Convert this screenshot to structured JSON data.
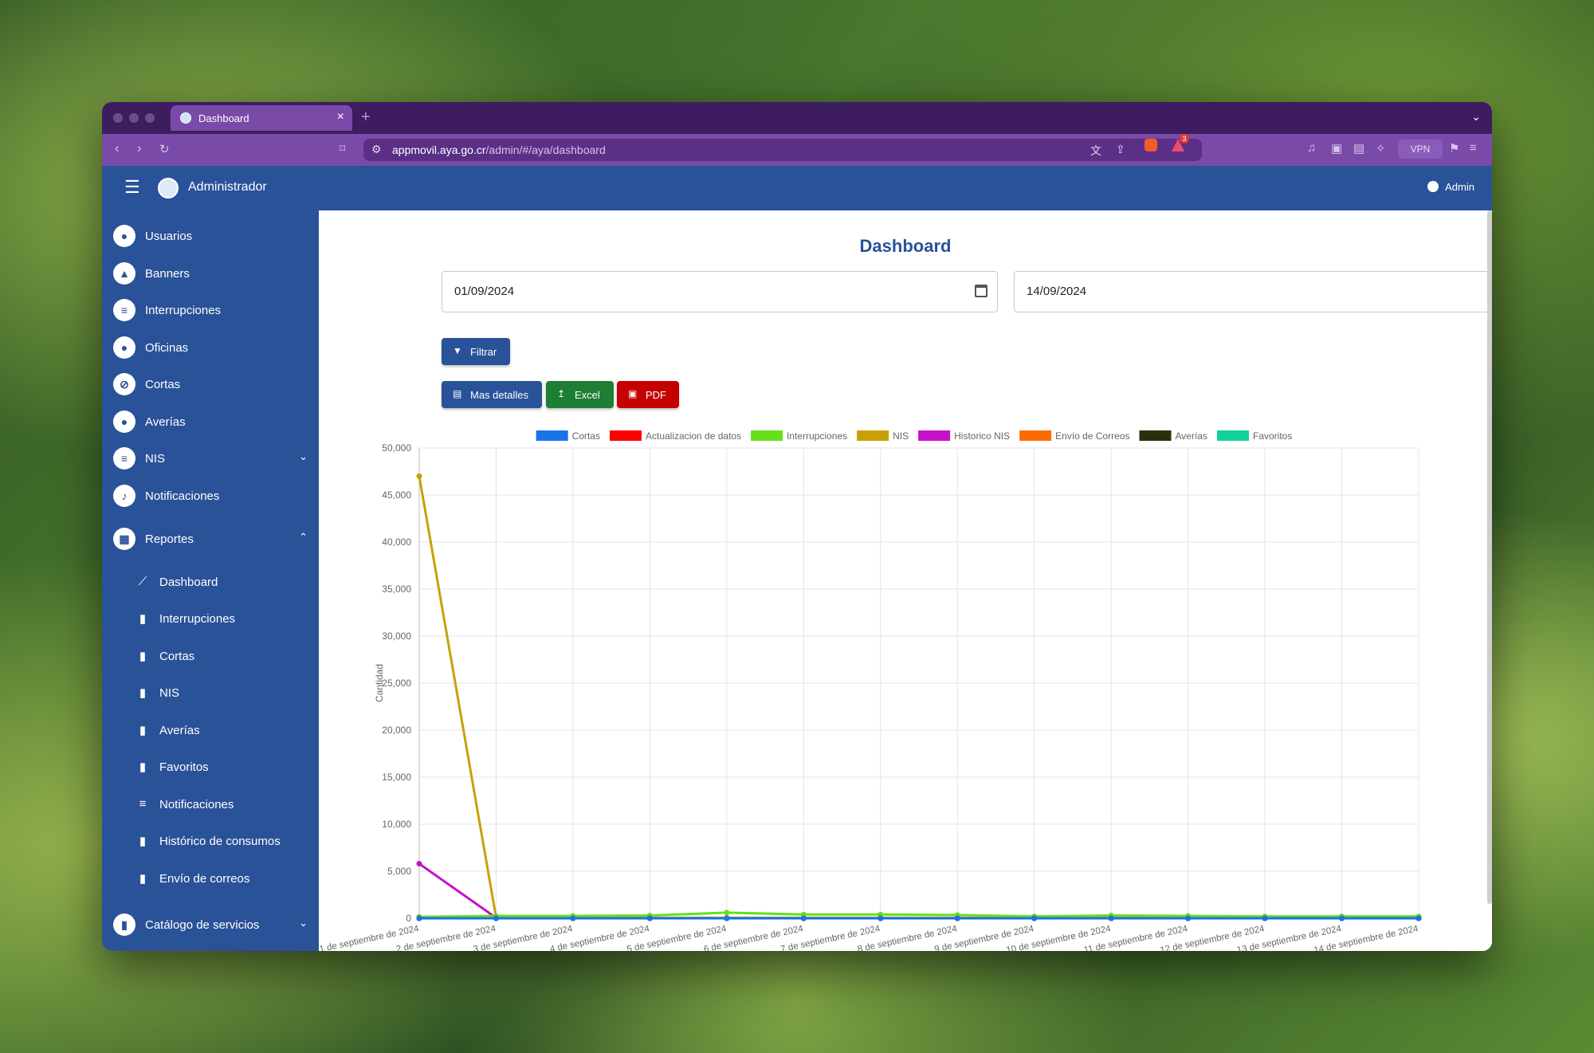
{
  "browser": {
    "tab_title": "Dashboard",
    "tab_close": "×",
    "new_tab": "+",
    "url_host": "appmovil.aya.go.cr",
    "url_path": "/admin/#/aya/dashboard",
    "rewards_count": "3",
    "vpn_label": "VPN"
  },
  "appbar": {
    "menu_icon": "☰",
    "title": "Administrador",
    "user": "Admin"
  },
  "sidebar": {
    "items": [
      {
        "label": "Usuarios",
        "icon": "account-icon"
      },
      {
        "label": "Banners",
        "icon": "image-icon"
      },
      {
        "label": "Interrupciones",
        "icon": "document-icon"
      },
      {
        "label": "Oficinas",
        "icon": "location-icon"
      },
      {
        "label": "Cortas",
        "icon": "water-off-icon"
      },
      {
        "label": "Averías",
        "icon": "water-drop-icon"
      },
      {
        "label": "NIS",
        "icon": "document-icon",
        "expandable": true
      },
      {
        "label": "Notificaciones",
        "icon": "bell-icon"
      },
      {
        "label": "Reportes",
        "icon": "calendar-icon",
        "expanded": true
      }
    ],
    "reportes_sub": [
      {
        "label": "Dashboard",
        "icon": "trend-icon"
      },
      {
        "label": "Interrupciones",
        "icon": "bar-chart-icon"
      },
      {
        "label": "Cortas",
        "icon": "bar-chart-icon"
      },
      {
        "label": "NIS",
        "icon": "bar-chart-icon"
      },
      {
        "label": "Averías",
        "icon": "bar-chart-icon"
      },
      {
        "label": "Favoritos",
        "icon": "bar-chart-icon"
      },
      {
        "label": "Notificaciones",
        "icon": "list-icon"
      },
      {
        "label": "Histórico de consumos",
        "icon": "bar-chart-icon"
      },
      {
        "label": "Envío de correos",
        "icon": "bar-chart-icon"
      }
    ],
    "catalog": {
      "label": "Catálogo de servicios",
      "icon": "book-icon"
    }
  },
  "main": {
    "title": "Dashboard",
    "date_from": "01/09/2024",
    "date_to": "14/09/2024",
    "filter_label": "Filtrar",
    "details_label": "Mas detalles",
    "excel_label": "Excel",
    "pdf_label": "PDF"
  },
  "chart_data": {
    "type": "line",
    "ylabel": "Cantidad",
    "xlabel": "",
    "ylim": [
      0,
      50000
    ],
    "yticks": [
      0,
      5000,
      10000,
      15000,
      20000,
      25000,
      30000,
      35000,
      40000,
      45000,
      50000
    ],
    "x": [
      "1 de septiembre de 2024",
      "2 de septiembre de 2024",
      "3 de septiembre de 2024",
      "4 de septiembre de 2024",
      "5 de septiembre de 2024",
      "6 de septiembre de 2024",
      "7 de septiembre de 2024",
      "8 de septiembre de 2024",
      "9 de septiembre de 2024",
      "10 de septiembre de 2024",
      "11 de septiembre de 2024",
      "12 de septiembre de 2024",
      "13 de septiembre de 2024",
      "14 de septiembre de 2024"
    ],
    "grid": true,
    "legend": "top",
    "series": [
      {
        "name": "Cortas",
        "color": "#1a73e8",
        "values": [
          0,
          0,
          0,
          0,
          0,
          0,
          0,
          0,
          0,
          0,
          0,
          0,
          0,
          0
        ]
      },
      {
        "name": "Actualizacion de datos",
        "color": "#ff0000",
        "values": [
          0,
          0,
          0,
          0,
          0,
          0,
          0,
          0,
          0,
          0,
          0,
          0,
          0,
          0
        ]
      },
      {
        "name": "Interrupciones",
        "color": "#66e01a",
        "values": [
          150,
          250,
          250,
          300,
          600,
          400,
          400,
          350,
          200,
          300,
          250,
          200,
          200,
          200
        ]
      },
      {
        "name": "NIS",
        "color": "#c9a004",
        "values": [
          47000,
          100,
          50,
          50,
          50,
          50,
          50,
          50,
          50,
          50,
          50,
          50,
          50,
          50
        ]
      },
      {
        "name": "Historico NIS",
        "color": "#c511c8",
        "values": [
          5800,
          50,
          20,
          20,
          20,
          20,
          20,
          20,
          20,
          20,
          20,
          20,
          20,
          20
        ]
      },
      {
        "name": "Envío de Correos",
        "color": "#ff6a00",
        "values": [
          0,
          0,
          0,
          0,
          0,
          0,
          0,
          0,
          0,
          0,
          0,
          0,
          0,
          0
        ]
      },
      {
        "name": "Averías",
        "color": "#2c2e0c",
        "values": [
          0,
          0,
          0,
          0,
          0,
          0,
          0,
          0,
          0,
          0,
          0,
          0,
          0,
          0
        ]
      },
      {
        "name": "Favoritos",
        "color": "#12d19a",
        "values": [
          0,
          0,
          0,
          0,
          0,
          0,
          0,
          0,
          0,
          0,
          0,
          0,
          0,
          0
        ]
      }
    ]
  }
}
